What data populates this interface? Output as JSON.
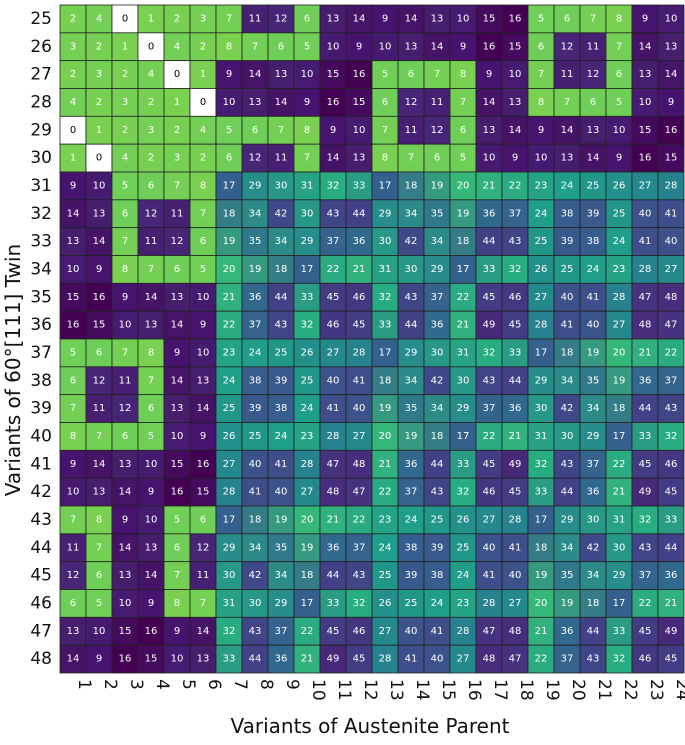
{
  "chart_data": {
    "type": "heatmap",
    "title": "",
    "xlabel": "Variants of Austenite Parent",
    "ylabel": "Variants of 60°[111] Twin",
    "x_categories": [
      "1",
      "2",
      "3",
      "4",
      "5",
      "6",
      "7",
      "8",
      "9",
      "10",
      "11",
      "12",
      "13",
      "14",
      "15",
      "16",
      "17",
      "18",
      "19",
      "20",
      "21",
      "22",
      "23",
      "24"
    ],
    "y_categories": [
      "25",
      "26",
      "27",
      "28",
      "29",
      "30",
      "31",
      "32",
      "33",
      "34",
      "35",
      "36",
      "37",
      "38",
      "39",
      "40",
      "41",
      "42",
      "43",
      "44",
      "45",
      "46",
      "47",
      "48"
    ],
    "value_range": [
      0,
      49
    ],
    "colormap": "viridis",
    "grid": true,
    "values": [
      [
        2,
        4,
        0,
        1,
        2,
        3,
        7,
        11,
        12,
        6,
        13,
        14,
        9,
        14,
        13,
        10,
        15,
        16,
        5,
        6,
        7,
        8,
        9,
        10
      ],
      [
        3,
        2,
        1,
        0,
        4,
        2,
        8,
        7,
        6,
        5,
        10,
        9,
        10,
        13,
        14,
        9,
        16,
        15,
        6,
        12,
        11,
        7,
        14,
        13
      ],
      [
        2,
        3,
        2,
        4,
        0,
        1,
        9,
        14,
        13,
        10,
        15,
        16,
        5,
        6,
        7,
        8,
        9,
        10,
        7,
        11,
        12,
        6,
        13,
        14
      ],
      [
        4,
        2,
        3,
        2,
        1,
        0,
        10,
        13,
        14,
        9,
        16,
        15,
        6,
        12,
        11,
        7,
        14,
        13,
        8,
        7,
        6,
        5,
        10,
        9
      ],
      [
        0,
        1,
        2,
        3,
        2,
        4,
        5,
        6,
        7,
        8,
        9,
        10,
        7,
        11,
        12,
        6,
        13,
        14,
        9,
        14,
        13,
        10,
        15,
        16
      ],
      [
        1,
        0,
        4,
        2,
        3,
        2,
        6,
        12,
        11,
        7,
        14,
        13,
        8,
        7,
        6,
        5,
        10,
        9,
        10,
        13,
        14,
        9,
        16,
        15
      ],
      [
        9,
        10,
        5,
        6,
        7,
        8,
        17,
        29,
        30,
        31,
        32,
        33,
        17,
        18,
        19,
        20,
        21,
        22,
        23,
        24,
        25,
        26,
        27,
        28
      ],
      [
        14,
        13,
        6,
        12,
        11,
        7,
        18,
        34,
        42,
        30,
        43,
        44,
        29,
        34,
        35,
        19,
        36,
        37,
        24,
        38,
        39,
        25,
        40,
        41
      ],
      [
        13,
        14,
        7,
        11,
        12,
        6,
        19,
        35,
        34,
        29,
        37,
        36,
        30,
        42,
        34,
        18,
        44,
        43,
        25,
        39,
        38,
        24,
        41,
        40
      ],
      [
        10,
        9,
        8,
        7,
        6,
        5,
        20,
        19,
        18,
        17,
        22,
        21,
        31,
        30,
        29,
        17,
        33,
        32,
        26,
        25,
        24,
        23,
        28,
        27
      ],
      [
        15,
        16,
        9,
        14,
        13,
        10,
        21,
        36,
        44,
        33,
        45,
        46,
        32,
        43,
        37,
        22,
        45,
        46,
        27,
        40,
        41,
        28,
        47,
        48
      ],
      [
        16,
        15,
        10,
        13,
        14,
        9,
        22,
        37,
        43,
        32,
        46,
        45,
        33,
        44,
        36,
        21,
        49,
        45,
        28,
        41,
        40,
        27,
        48,
        47
      ],
      [
        5,
        6,
        7,
        8,
        9,
        10,
        23,
        24,
        25,
        26,
        27,
        28,
        17,
        29,
        30,
        31,
        32,
        33,
        17,
        18,
        19,
        20,
        21,
        22
      ],
      [
        6,
        12,
        11,
        7,
        14,
        13,
        24,
        38,
        39,
        25,
        40,
        41,
        18,
        34,
        42,
        30,
        43,
        44,
        29,
        34,
        35,
        19,
        36,
        37
      ],
      [
        7,
        11,
        12,
        6,
        13,
        14,
        25,
        39,
        38,
        24,
        41,
        40,
        19,
        35,
        34,
        29,
        37,
        36,
        30,
        42,
        34,
        18,
        44,
        43
      ],
      [
        8,
        7,
        6,
        5,
        10,
        9,
        26,
        25,
        24,
        23,
        28,
        27,
        20,
        19,
        18,
        17,
        22,
        21,
        31,
        30,
        29,
        17,
        33,
        32
      ],
      [
        9,
        14,
        13,
        10,
        15,
        16,
        27,
        40,
        41,
        28,
        47,
        48,
        21,
        36,
        44,
        33,
        45,
        49,
        32,
        43,
        37,
        22,
        45,
        46
      ],
      [
        10,
        13,
        14,
        9,
        16,
        15,
        28,
        41,
        40,
        27,
        48,
        47,
        22,
        37,
        43,
        32,
        46,
        45,
        33,
        44,
        36,
        21,
        49,
        45
      ],
      [
        7,
        8,
        9,
        10,
        5,
        6,
        17,
        18,
        19,
        20,
        21,
        22,
        23,
        24,
        25,
        26,
        27,
        28,
        17,
        29,
        30,
        31,
        32,
        33
      ],
      [
        11,
        7,
        14,
        13,
        6,
        12,
        29,
        34,
        35,
        19,
        36,
        37,
        24,
        38,
        39,
        25,
        40,
        41,
        18,
        34,
        42,
        30,
        43,
        44
      ],
      [
        12,
        6,
        13,
        14,
        7,
        11,
        30,
        42,
        34,
        18,
        44,
        43,
        25,
        39,
        38,
        24,
        41,
        40,
        19,
        35,
        34,
        29,
        37,
        36
      ],
      [
        6,
        5,
        10,
        9,
        8,
        7,
        31,
        30,
        29,
        17,
        33,
        32,
        26,
        25,
        24,
        23,
        28,
        27,
        20,
        19,
        18,
        17,
        22,
        21
      ],
      [
        13,
        10,
        15,
        16,
        9,
        14,
        32,
        43,
        37,
        22,
        45,
        46,
        27,
        40,
        41,
        28,
        47,
        48,
        21,
        36,
        44,
        33,
        45,
        49
      ],
      [
        14,
        9,
        16,
        15,
        10,
        13,
        33,
        44,
        36,
        21,
        49,
        45,
        28,
        41,
        40,
        27,
        48,
        47,
        22,
        37,
        43,
        32,
        46,
        45
      ]
    ]
  }
}
